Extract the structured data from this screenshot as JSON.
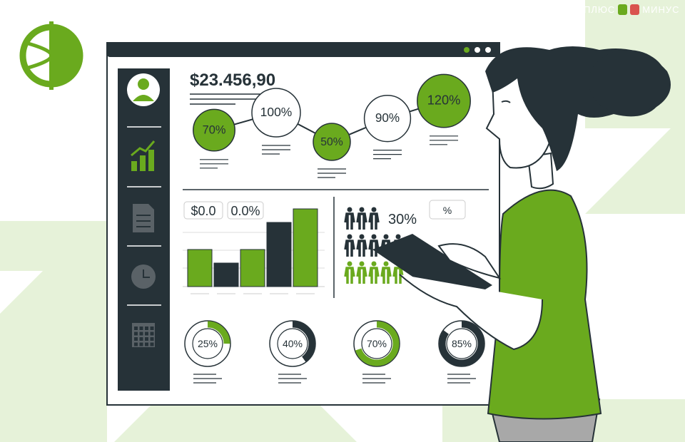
{
  "watermark": {
    "left": "ПЛЮС",
    "right": "МИНУС"
  },
  "colors": {
    "accent": "#6aaa1e",
    "dark": "#263238",
    "pale": "#e6f2d9",
    "gray": "#a8a8a8"
  },
  "dashboard": {
    "balance": "$23.456,90",
    "sidebar_icons": [
      "user-avatar-icon",
      "growth-chart-icon",
      "document-icon",
      "clock-icon",
      "calendar-icon"
    ],
    "trend": [
      {
        "label": "70%",
        "value": 70,
        "filled": true
      },
      {
        "label": "100%",
        "value": 100,
        "filled": false
      },
      {
        "label": "50%",
        "value": 50,
        "filled": true
      },
      {
        "label": "90%",
        "value": 90,
        "filled": false
      },
      {
        "label": "120%",
        "value": 120,
        "filled": true
      }
    ],
    "bar_badges": [
      "$0.0",
      "0.0%"
    ],
    "bars": [
      {
        "value": 52,
        "color": "green"
      },
      {
        "value": 33,
        "color": "dark"
      },
      {
        "value": 52,
        "color": "green"
      },
      {
        "value": 90,
        "color": "dark"
      },
      {
        "value": 109,
        "color": "green"
      }
    ],
    "people": {
      "label": "30%",
      "badge": "%"
    },
    "donuts": [
      {
        "label": "25%",
        "value": 25,
        "style": "green"
      },
      {
        "label": "40%",
        "value": 40,
        "style": "dark"
      },
      {
        "label": "70%",
        "value": 70,
        "style": "green"
      },
      {
        "label": "85%",
        "value": 85,
        "style": "dark"
      }
    ]
  }
}
